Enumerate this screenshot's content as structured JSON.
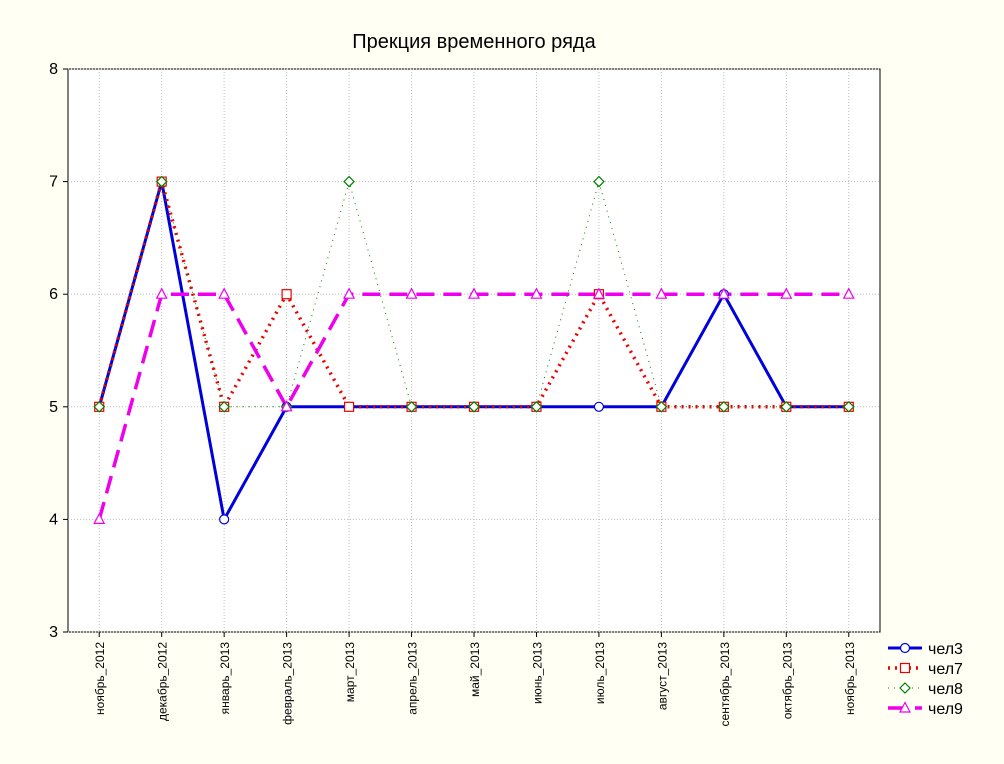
{
  "chart_data": {
    "type": "line",
    "title": "Прекция временного ряда",
    "categories": [
      "ноябрь_2012",
      "декабрь_2012",
      "январь_2013",
      "февраль_2013",
      "март_2013",
      "апрель_2013",
      "май_2013",
      "июнь_2013",
      "июль_2013",
      "август_2013",
      "сентябрь_2013",
      "октябрь_2013",
      "ноябрь_2013"
    ],
    "series": [
      {
        "name": "чел3",
        "color": "#0000dd",
        "marker": "circle",
        "dash": "solid",
        "values": [
          5,
          7,
          4,
          5,
          5,
          5,
          5,
          5,
          5,
          5,
          6,
          5,
          5
        ]
      },
      {
        "name": "чел7",
        "color": "#ee0000",
        "marker": "square",
        "dash": "dotted",
        "values": [
          5,
          7,
          5,
          6,
          5,
          5,
          5,
          5,
          6,
          5,
          5,
          5,
          5
        ]
      },
      {
        "name": "чел8",
        "color": "#008000",
        "marker": "diamond",
        "dash": "fine",
        "values": [
          5,
          7,
          5,
          5,
          7,
          5,
          5,
          5,
          7,
          5,
          5,
          5,
          5
        ]
      },
      {
        "name": "чел9",
        "color": "#ee00ee",
        "marker": "triangle",
        "dash": "dashed",
        "values": [
          4,
          6,
          6,
          5,
          6,
          6,
          6,
          6,
          6,
          6,
          6,
          6,
          6
        ]
      }
    ],
    "ylim": [
      3,
      8
    ],
    "yticks": [
      3,
      4,
      5,
      6,
      7,
      8
    ],
    "grid": true,
    "legend": "bottom-right"
  }
}
